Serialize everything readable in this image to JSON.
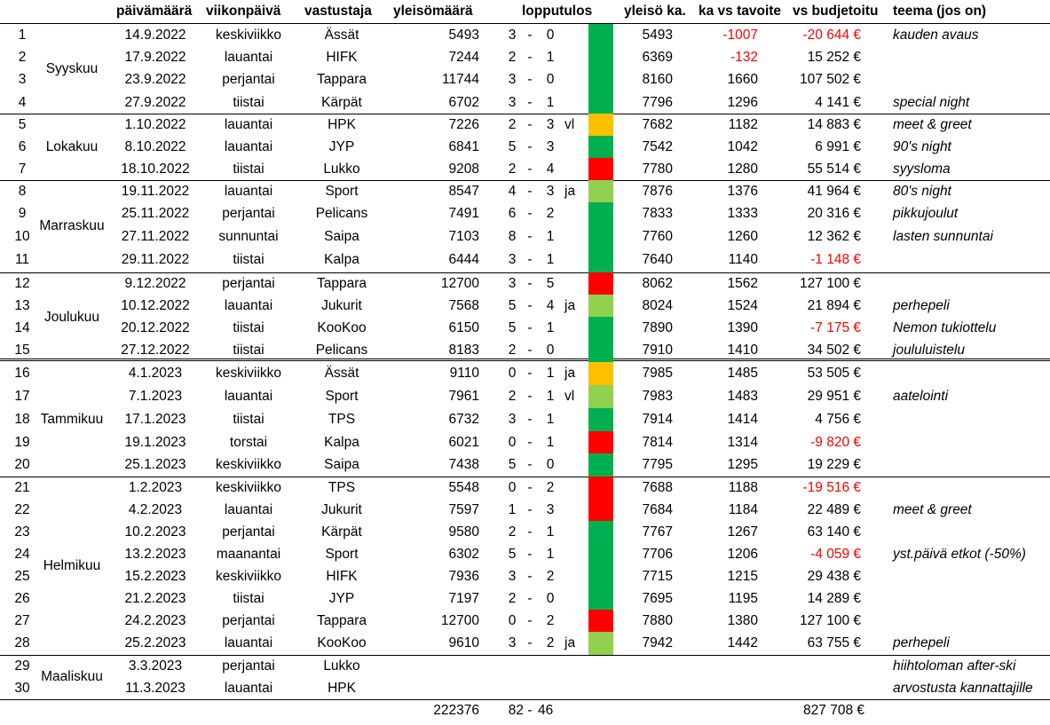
{
  "headers": {
    "date": "päivämäärä",
    "weekday": "viikonpäivä",
    "opponent": "vastustaja",
    "attendance": "yleisömäärä",
    "result": "lopputulos",
    "avg": "yleisö ka.",
    "vs_target": "ka vs tavoite",
    "vs_budget": "vs budjetoitu",
    "theme": "teema (jos on)"
  },
  "months": [
    {
      "name": "Syyskuu",
      "rows": [
        1,
        4
      ]
    },
    {
      "name": "Lokakuu",
      "rows": [
        5,
        7
      ]
    },
    {
      "name": "Marraskuu",
      "rows": [
        8,
        11
      ]
    },
    {
      "name": "Joulukuu",
      "rows": [
        12,
        15
      ]
    },
    {
      "name": "Tammikuu",
      "rows": [
        16,
        20
      ]
    },
    {
      "name": "Helmikuu",
      "rows": [
        21,
        28
      ]
    },
    {
      "name": "Maaliskuu",
      "rows": [
        29,
        30
      ]
    }
  ],
  "colors": {
    "win": "#00b050",
    "win_ot": "#92d050",
    "loss_ot": "#ffc000",
    "loss": "#ff0000",
    "negative_text": "#ff0000"
  },
  "games": [
    {
      "no": "1",
      "date": "14.9.2022",
      "weekday": "keskiviikko",
      "opponent": "Ässät",
      "attendance": "5493",
      "home": "3",
      "away": "0",
      "extra": "",
      "outcome": "win",
      "avg": "5493",
      "vs_target": "-1007",
      "target_neg": true,
      "vs_budget": "-20 644 €",
      "budget_neg": true,
      "theme": "kauden avaus"
    },
    {
      "no": "2",
      "date": "17.9.2022",
      "weekday": "lauantai",
      "opponent": "HIFK",
      "attendance": "7244",
      "home": "2",
      "away": "1",
      "extra": "",
      "outcome": "win",
      "avg": "6369",
      "vs_target": "-132",
      "target_neg": true,
      "vs_budget": "15 252 €",
      "budget_neg": false,
      "theme": ""
    },
    {
      "no": "3",
      "date": "23.9.2022",
      "weekday": "perjantai",
      "opponent": "Tappara",
      "attendance": "11744",
      "home": "3",
      "away": "0",
      "extra": "",
      "outcome": "win",
      "avg": "8160",
      "vs_target": "1660",
      "target_neg": false,
      "vs_budget": "107 502 €",
      "budget_neg": false,
      "theme": ""
    },
    {
      "no": "4",
      "date": "27.9.2022",
      "weekday": "tiistai",
      "opponent": "Kärpät",
      "attendance": "6702",
      "home": "3",
      "away": "1",
      "extra": "",
      "outcome": "win",
      "avg": "7796",
      "vs_target": "1296",
      "target_neg": false,
      "vs_budget": "4 141 €",
      "budget_neg": false,
      "theme": "special night"
    },
    {
      "no": "5",
      "date": "1.10.2022",
      "weekday": "lauantai",
      "opponent": "HPK",
      "attendance": "7226",
      "home": "2",
      "away": "3",
      "extra": "vl",
      "outcome": "loss_ot",
      "avg": "7682",
      "vs_target": "1182",
      "target_neg": false,
      "vs_budget": "14 883 €",
      "budget_neg": false,
      "theme": "meet & greet"
    },
    {
      "no": "6",
      "date": "8.10.2022",
      "weekday": "lauantai",
      "opponent": "JYP",
      "attendance": "6841",
      "home": "5",
      "away": "3",
      "extra": "",
      "outcome": "win",
      "avg": "7542",
      "vs_target": "1042",
      "target_neg": false,
      "vs_budget": "6 991 €",
      "budget_neg": false,
      "theme": "90's night"
    },
    {
      "no": "7",
      "date": "18.10.2022",
      "weekday": "tiistai",
      "opponent": "Lukko",
      "attendance": "9208",
      "home": "2",
      "away": "4",
      "extra": "",
      "outcome": "loss",
      "avg": "7780",
      "vs_target": "1280",
      "target_neg": false,
      "vs_budget": "55 514 €",
      "budget_neg": false,
      "theme": "syysloma"
    },
    {
      "no": "8",
      "date": "19.11.2022",
      "weekday": "lauantai",
      "opponent": "Sport",
      "attendance": "8547",
      "home": "4",
      "away": "3",
      "extra": "ja",
      "outcome": "win_ot",
      "avg": "7876",
      "vs_target": "1376",
      "target_neg": false,
      "vs_budget": "41 964 €",
      "budget_neg": false,
      "theme": "80's night"
    },
    {
      "no": "9",
      "date": "25.11.2022",
      "weekday": "perjantai",
      "opponent": "Pelicans",
      "attendance": "7491",
      "home": "6",
      "away": "2",
      "extra": "",
      "outcome": "win",
      "avg": "7833",
      "vs_target": "1333",
      "target_neg": false,
      "vs_budget": "20 316 €",
      "budget_neg": false,
      "theme": "pikkujoulut"
    },
    {
      "no": "10",
      "date": "27.11.2022",
      "weekday": "sunnuntai",
      "opponent": "Saipa",
      "attendance": "7103",
      "home": "8",
      "away": "1",
      "extra": "",
      "outcome": "win",
      "avg": "7760",
      "vs_target": "1260",
      "target_neg": false,
      "vs_budget": "12 362 €",
      "budget_neg": false,
      "theme": "lasten sunnuntai"
    },
    {
      "no": "11",
      "date": "29.11.2022",
      "weekday": "tiistai",
      "opponent": "Kalpa",
      "attendance": "6444",
      "home": "3",
      "away": "1",
      "extra": "",
      "outcome": "win",
      "avg": "7640",
      "vs_target": "1140",
      "target_neg": false,
      "vs_budget": "-1 148 €",
      "budget_neg": true,
      "theme": ""
    },
    {
      "no": "12",
      "date": "9.12.2022",
      "weekday": "perjantai",
      "opponent": "Tappara",
      "attendance": "12700",
      "home": "3",
      "away": "5",
      "extra": "",
      "outcome": "loss",
      "avg": "8062",
      "vs_target": "1562",
      "target_neg": false,
      "vs_budget": "127 100 €",
      "budget_neg": false,
      "theme": ""
    },
    {
      "no": "13",
      "date": "10.12.2022",
      "weekday": "lauantai",
      "opponent": "Jukurit",
      "attendance": "7568",
      "home": "5",
      "away": "4",
      "extra": "ja",
      "outcome": "win_ot",
      "avg": "8024",
      "vs_target": "1524",
      "target_neg": false,
      "vs_budget": "21 894 €",
      "budget_neg": false,
      "theme": "perhepeli"
    },
    {
      "no": "14",
      "date": "20.12.2022",
      "weekday": "tiistai",
      "opponent": "KooKoo",
      "attendance": "6150",
      "home": "5",
      "away": "1",
      "extra": "",
      "outcome": "win",
      "avg": "7890",
      "vs_target": "1390",
      "target_neg": false,
      "vs_budget": "-7 175 €",
      "budget_neg": true,
      "theme": "Nemon tukiottelu"
    },
    {
      "no": "15",
      "date": "27.12.2022",
      "weekday": "tiistai",
      "opponent": "Pelicans",
      "attendance": "8183",
      "home": "2",
      "away": "0",
      "extra": "",
      "outcome": "win",
      "avg": "7910",
      "vs_target": "1410",
      "target_neg": false,
      "vs_budget": "34 502 €",
      "budget_neg": false,
      "theme": "joululuistelu"
    },
    {
      "no": "16",
      "date": "4.1.2023",
      "weekday": "keskiviikko",
      "opponent": "Ässät",
      "attendance": "9110",
      "home": "0",
      "away": "1",
      "extra": "ja",
      "outcome": "loss_ot",
      "avg": "7985",
      "vs_target": "1485",
      "target_neg": false,
      "vs_budget": "53 505 €",
      "budget_neg": false,
      "theme": ""
    },
    {
      "no": "17",
      "date": "7.1.2023",
      "weekday": "lauantai",
      "opponent": "Sport",
      "attendance": "7961",
      "home": "2",
      "away": "1",
      "extra": "vl",
      "outcome": "win_ot",
      "avg": "7983",
      "vs_target": "1483",
      "target_neg": false,
      "vs_budget": "29 951 €",
      "budget_neg": false,
      "theme": "aatelointi"
    },
    {
      "no": "18",
      "date": "17.1.2023",
      "weekday": "tiistai",
      "opponent": "TPS",
      "attendance": "6732",
      "home": "3",
      "away": "1",
      "extra": "",
      "outcome": "win",
      "avg": "7914",
      "vs_target": "1414",
      "target_neg": false,
      "vs_budget": "4 756 €",
      "budget_neg": false,
      "theme": ""
    },
    {
      "no": "19",
      "date": "19.1.2023",
      "weekday": "torstai",
      "opponent": "Kalpa",
      "attendance": "6021",
      "home": "0",
      "away": "1",
      "extra": "",
      "outcome": "loss",
      "avg": "7814",
      "vs_target": "1314",
      "target_neg": false,
      "vs_budget": "-9 820 €",
      "budget_neg": true,
      "theme": ""
    },
    {
      "no": "20",
      "date": "25.1.2023",
      "weekday": "keskiviikko",
      "opponent": "Saipa",
      "attendance": "7438",
      "home": "5",
      "away": "0",
      "extra": "",
      "outcome": "win",
      "avg": "7795",
      "vs_target": "1295",
      "target_neg": false,
      "vs_budget": "19 229 €",
      "budget_neg": false,
      "theme": ""
    },
    {
      "no": "21",
      "date": "1.2.2023",
      "weekday": "keskiviikko",
      "opponent": "TPS",
      "attendance": "5548",
      "home": "0",
      "away": "2",
      "extra": "",
      "outcome": "loss",
      "avg": "7688",
      "vs_target": "1188",
      "target_neg": false,
      "vs_budget": "-19 516 €",
      "budget_neg": true,
      "theme": ""
    },
    {
      "no": "22",
      "date": "4.2.2023",
      "weekday": "lauantai",
      "opponent": "Jukurit",
      "attendance": "7597",
      "home": "1",
      "away": "3",
      "extra": "",
      "outcome": "loss",
      "avg": "7684",
      "vs_target": "1184",
      "target_neg": false,
      "vs_budget": "22 489 €",
      "budget_neg": false,
      "theme": "meet & greet"
    },
    {
      "no": "23",
      "date": "10.2.2023",
      "weekday": "perjantai",
      "opponent": "Kärpät",
      "attendance": "9580",
      "home": "2",
      "away": "1",
      "extra": "",
      "outcome": "win",
      "avg": "7767",
      "vs_target": "1267",
      "target_neg": false,
      "vs_budget": "63 140 €",
      "budget_neg": false,
      "theme": ""
    },
    {
      "no": "24",
      "date": "13.2.2023",
      "weekday": "maanantai",
      "opponent": "Sport",
      "attendance": "6302",
      "home": "5",
      "away": "1",
      "extra": "",
      "outcome": "win",
      "avg": "7706",
      "vs_target": "1206",
      "target_neg": false,
      "vs_budget": "-4 059 €",
      "budget_neg": true,
      "theme": "yst.päivä etkot (-50%)"
    },
    {
      "no": "25",
      "date": "15.2.2023",
      "weekday": "keskiviikko",
      "opponent": "HIFK",
      "attendance": "7936",
      "home": "3",
      "away": "2",
      "extra": "",
      "outcome": "win",
      "avg": "7715",
      "vs_target": "1215",
      "target_neg": false,
      "vs_budget": "29 438 €",
      "budget_neg": false,
      "theme": ""
    },
    {
      "no": "26",
      "date": "21.2.2023",
      "weekday": "tiistai",
      "opponent": "JYP",
      "attendance": "7197",
      "home": "2",
      "away": "0",
      "extra": "",
      "outcome": "win",
      "avg": "7695",
      "vs_target": "1195",
      "target_neg": false,
      "vs_budget": "14 289 €",
      "budget_neg": false,
      "theme": ""
    },
    {
      "no": "27",
      "date": "24.2.2023",
      "weekday": "perjantai",
      "opponent": "Tappara",
      "attendance": "12700",
      "home": "0",
      "away": "2",
      "extra": "",
      "outcome": "loss",
      "avg": "7880",
      "vs_target": "1380",
      "target_neg": false,
      "vs_budget": "127 100 €",
      "budget_neg": false,
      "theme": ""
    },
    {
      "no": "28",
      "date": "25.2.2023",
      "weekday": "lauantai",
      "opponent": "KooKoo",
      "attendance": "9610",
      "home": "3",
      "away": "2",
      "extra": "ja",
      "outcome": "win_ot",
      "avg": "7942",
      "vs_target": "1442",
      "target_neg": false,
      "vs_budget": "63 755 €",
      "budget_neg": false,
      "theme": "perhepeli"
    },
    {
      "no": "29",
      "date": "3.3.2023",
      "weekday": "perjantai",
      "opponent": "Lukko",
      "attendance": "",
      "home": "",
      "away": "",
      "extra": "",
      "outcome": "",
      "avg": "",
      "vs_target": "",
      "target_neg": false,
      "vs_budget": "",
      "budget_neg": false,
      "theme": "hiihtoloman after-ski"
    },
    {
      "no": "30",
      "date": "11.3.2023",
      "weekday": "lauantai",
      "opponent": "HPK",
      "attendance": "",
      "home": "",
      "away": "",
      "extra": "",
      "outcome": "",
      "avg": "",
      "vs_target": "",
      "target_neg": false,
      "vs_budget": "",
      "budget_neg": false,
      "theme": "arvostusta kannattajille"
    }
  ],
  "totals": {
    "attendance": "222376",
    "goals_for": "82",
    "goals_against": "46",
    "vs_budget": "827 708 €"
  }
}
